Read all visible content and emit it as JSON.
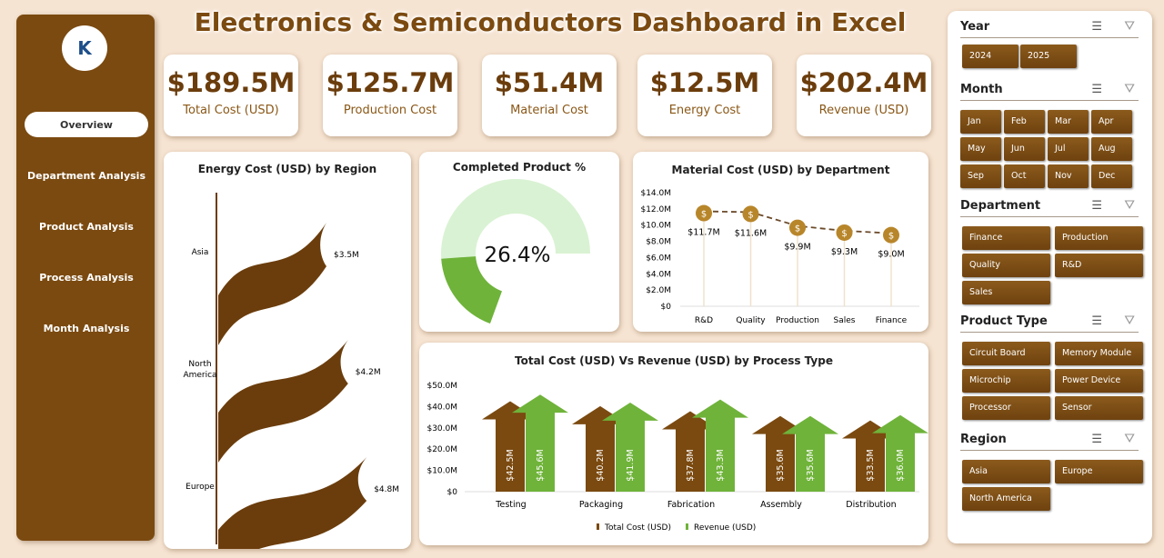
{
  "title": "Electronics & Semiconductors Dashboard in Excel",
  "sidebar": {
    "items": [
      {
        "label": "Overview",
        "active": true
      },
      {
        "label": "Department Analysis"
      },
      {
        "label": "Product Analysis"
      },
      {
        "label": "Process Analysis"
      },
      {
        "label": "Month Analysis"
      }
    ]
  },
  "kpis": [
    {
      "value": "$189.5M",
      "label": "Total Cost (USD)"
    },
    {
      "value": "$125.7M",
      "label": "Production Cost"
    },
    {
      "value": "$51.4M",
      "label": "Material Cost"
    },
    {
      "value": "$12.5M",
      "label": "Energy Cost"
    },
    {
      "value": "$202.4M",
      "label": "Revenue (USD)"
    }
  ],
  "colors": {
    "brown": "#7b4a10",
    "green": "#6fb33a",
    "light_green": "#d9f2d3",
    "background": "#f6e4d2"
  },
  "chart_data": [
    {
      "type": "bar",
      "orientation": "horizontal",
      "title": "Energy Cost (USD) by Region",
      "categories": [
        "Asia",
        "North America",
        "Europe"
      ],
      "values": [
        3.5,
        4.2,
        4.8
      ],
      "labels": [
        "$3.5M",
        "$4.2M",
        "$4.8M"
      ],
      "unit": "M USD"
    },
    {
      "type": "gauge",
      "title": "Completed Product %",
      "value": 26.4,
      "label": "26.4%"
    },
    {
      "type": "line",
      "title": "Material Cost (USD) by Department",
      "categories": [
        "R&D",
        "Quality",
        "Production",
        "Sales",
        "Finance"
      ],
      "values": [
        11.7,
        11.6,
        9.9,
        9.3,
        9.0
      ],
      "labels": [
        "$11.7M",
        "$11.6M",
        "$9.9M",
        "$9.3M",
        "$9.0M"
      ],
      "yticks": [
        "$0",
        "$2.0M",
        "$4.0M",
        "$6.0M",
        "$8.0M",
        "$10.0M",
        "$12.0M",
        "$14.0M"
      ],
      "ylim": [
        0,
        14
      ]
    },
    {
      "type": "bar",
      "title": "Total Cost (USD) Vs Revenue (USD) by Process Type",
      "categories": [
        "Testing",
        "Packaging",
        "Fabrication",
        "Assembly",
        "Distribution"
      ],
      "series": [
        {
          "name": "Total Cost (USD)",
          "values": [
            42.5,
            40.2,
            37.8,
            35.6,
            33.5
          ],
          "labels": [
            "$42.5M",
            "$40.2M",
            "$37.8M",
            "$35.6M",
            "$33.5M"
          ]
        },
        {
          "name": "Revenue (USD)",
          "values": [
            45.6,
            41.9,
            43.3,
            35.6,
            36.0
          ],
          "labels": [
            "$45.6M",
            "$41.9M",
            "$43.3M",
            "$35.6M",
            "$36.0M"
          ]
        }
      ],
      "yticks": [
        "$0",
        "$10.0M",
        "$20.0M",
        "$30.0M",
        "$40.0M",
        "$50.0M"
      ],
      "ylim": [
        0,
        50
      ],
      "legend": "bottom"
    }
  ],
  "filters": {
    "year": {
      "title": "Year",
      "items": [
        "2024",
        "2025"
      ]
    },
    "month": {
      "title": "Month",
      "items": [
        "Jan",
        "Feb",
        "Mar",
        "Apr",
        "May",
        "Jun",
        "Jul",
        "Aug",
        "Sep",
        "Oct",
        "Nov",
        "Dec"
      ]
    },
    "department": {
      "title": "Department",
      "items": [
        "Finance",
        "Production",
        "Quality",
        "R&D",
        "Sales"
      ]
    },
    "product": {
      "title": "Product Type",
      "items": [
        "Circuit Board",
        "Memory Module",
        "Microchip",
        "Power Device",
        "Processor",
        "Sensor"
      ]
    },
    "region": {
      "title": "Region",
      "items": [
        "Asia",
        "Europe",
        "North America"
      ]
    }
  }
}
